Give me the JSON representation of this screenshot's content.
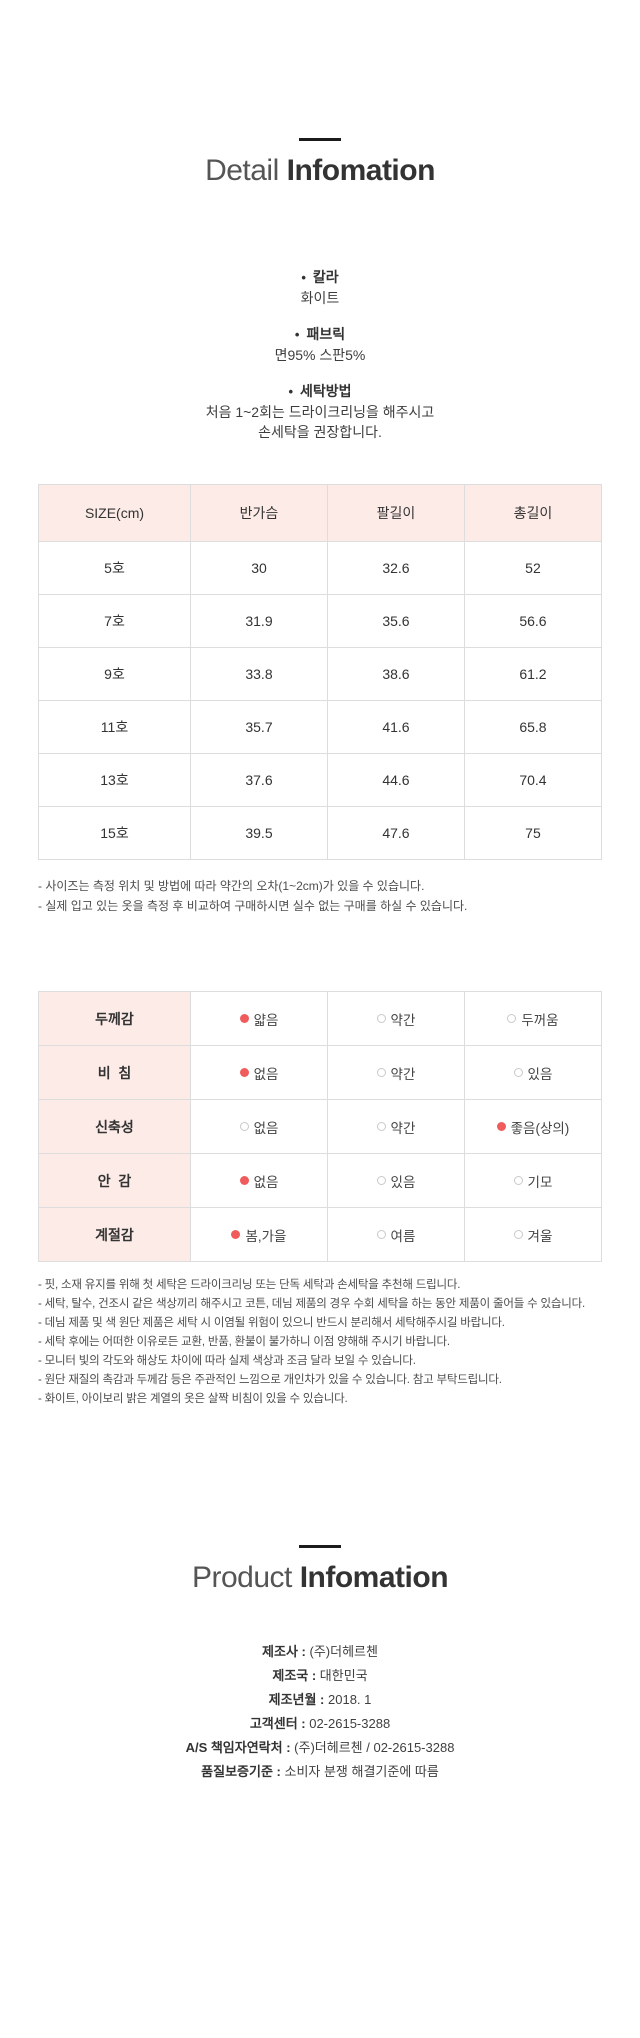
{
  "detail": {
    "title": {
      "light": "Detail",
      "bold": "Infomation"
    },
    "bullet": "•",
    "specs": [
      {
        "label": "칼라",
        "lines": [
          "화이트"
        ]
      },
      {
        "label": "패브릭",
        "lines": [
          "면95% 스판5%"
        ]
      },
      {
        "label": "세탁방법",
        "lines": [
          "처음 1~2회는 드라이크리닝을 해주시고",
          "손세탁을 권장합니다."
        ]
      }
    ],
    "size_table": {
      "headers": [
        "SIZE(cm)",
        "반가슴",
        "팔길이",
        "총길이"
      ],
      "rows": [
        [
          "5호",
          "30",
          "32.6",
          "52"
        ],
        [
          "7호",
          "31.9",
          "35.6",
          "56.6"
        ],
        [
          "9호",
          "33.8",
          "38.6",
          "61.2"
        ],
        [
          "11호",
          "35.7",
          "41.6",
          "65.8"
        ],
        [
          "13호",
          "37.6",
          "44.6",
          "70.4"
        ],
        [
          "15호",
          "39.5",
          "47.6",
          "75"
        ]
      ]
    },
    "size_notes": [
      "- 사이즈는 측정 위치 및 방법에 따라 약간의 오차(1~2cm)가 있을 수 있습니다.",
      "- 실제 입고 있는 옷을 측정 후 비교하여 구매하시면 실수 없는 구매를 하실 수 있습니다."
    ],
    "attribute_table": {
      "rows": [
        {
          "label": "두께감",
          "options": [
            {
              "text": "얇음",
              "selected": true
            },
            {
              "text": "약간",
              "selected": false
            },
            {
              "text": "두꺼움",
              "selected": false
            }
          ]
        },
        {
          "label": "비  침",
          "options": [
            {
              "text": "없음",
              "selected": true
            },
            {
              "text": "약간",
              "selected": false
            },
            {
              "text": "있음",
              "selected": false
            }
          ]
        },
        {
          "label": "신축성",
          "options": [
            {
              "text": "없음",
              "selected": false
            },
            {
              "text": "약간",
              "selected": false
            },
            {
              "text": "좋음(상의)",
              "selected": true
            }
          ]
        },
        {
          "label": "안  감",
          "options": [
            {
              "text": "없음",
              "selected": true
            },
            {
              "text": "있음",
              "selected": false
            },
            {
              "text": "기모",
              "selected": false
            }
          ]
        },
        {
          "label": "계절감",
          "options": [
            {
              "text": "봄,가을",
              "selected": true
            },
            {
              "text": "여름",
              "selected": false
            },
            {
              "text": "겨울",
              "selected": false
            }
          ]
        }
      ]
    },
    "care_notes": [
      "- 핏, 소재 유지를 위해 첫 세탁은 드라이크리닝 또는 단독 세탁과 손세탁을 추천해 드립니다.",
      "- 세탁, 탈수, 건조시 같은 색상끼리 해주시고 코튼, 데님 제품의 경우 수회 세탁을 하는 동안 제품이 줄어들 수 있습니다.",
      "- 데님 제품 및 색 원단 제품은 세탁 시 이염될 위험이 있으니 반드시 분리해서 세탁해주시길 바랍니다.",
      "- 세탁 후에는 어떠한 이유로든 교환, 반품, 환불이 불가하니 이점 양해해 주시기 바랍니다.",
      "- 모니터 빛의 각도와 해상도 차이에 따라 실제 색상과 조금 달라 보일 수 있습니다.",
      "- 원단 재질의 촉감과 두께감 등은 주관적인 느낌으로 개인차가 있을 수 있습니다. 참고 부탁드립니다.",
      "- 화이트, 아이보리 밝은 계열의 옷은 살짝 비침이 있을 수 있습니다."
    ]
  },
  "product": {
    "title": {
      "light": "Product",
      "bold": "Infomation"
    },
    "separator": " : ",
    "fields": [
      {
        "label": "제조사",
        "value": "(주)더헤르첸"
      },
      {
        "label": "제조국",
        "value": "대한민국"
      },
      {
        "label": "제조년월",
        "value": "2018. 1"
      },
      {
        "label": "고객센터",
        "value": "02-2615-3288"
      },
      {
        "label": "A/S 책임자연락처",
        "value": "(주)더헤르첸 / 02-2615-3288"
      },
      {
        "label": "품질보증기준",
        "value": "소비자 분쟁 해결기준에 따름"
      }
    ]
  },
  "colors": {
    "header_pink_bg": "#fcebe7",
    "table_border": "#dddddd",
    "selected_dot": "#f05c5c",
    "unselected_dot_border": "#c9c9c9",
    "text_dark": "#333333",
    "text_note": "#4c4c4c"
  }
}
